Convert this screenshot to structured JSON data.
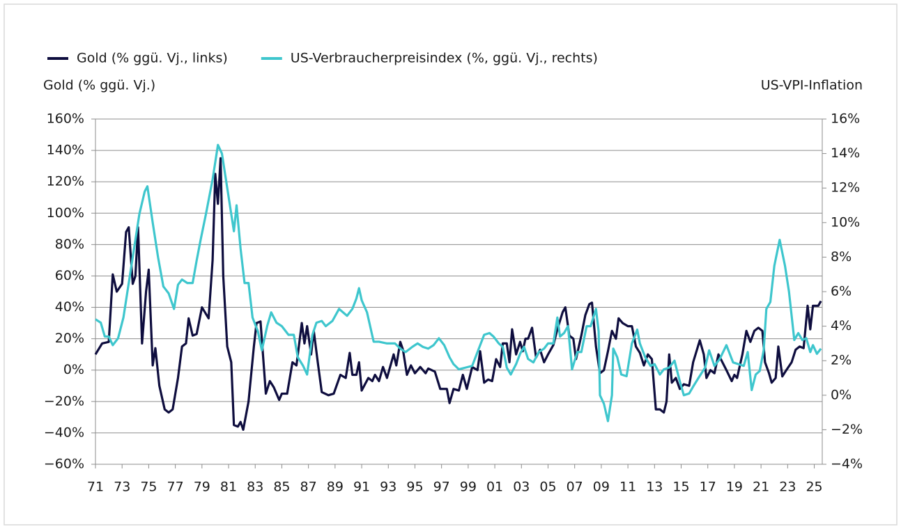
{
  "chart_data": {
    "type": "line",
    "ylabel": "Gold (% ggü. Vj.)",
    "y2label": "US-VPI-Inflation",
    "xlim": [
      1971,
      2025.6
    ],
    "xticks": [
      {
        "value": 1971,
        "label": "71"
      },
      {
        "value": 1973,
        "label": "73"
      },
      {
        "value": 1975,
        "label": "75"
      },
      {
        "value": 1977,
        "label": "77"
      },
      {
        "value": 1979,
        "label": "79"
      },
      {
        "value": 1981,
        "label": "81"
      },
      {
        "value": 1983,
        "label": "83"
      },
      {
        "value": 1985,
        "label": "85"
      },
      {
        "value": 1987,
        "label": "87"
      },
      {
        "value": 1989,
        "label": "89"
      },
      {
        "value": 1991,
        "label": "91"
      },
      {
        "value": 1993,
        "label": "93"
      },
      {
        "value": 1995,
        "label": "95"
      },
      {
        "value": 1997,
        "label": "97"
      },
      {
        "value": 1999,
        "label": "99"
      },
      {
        "value": 2001,
        "label": "01"
      },
      {
        "value": 2003,
        "label": "03"
      },
      {
        "value": 2005,
        "label": "05"
      },
      {
        "value": 2007,
        "label": "07"
      },
      {
        "value": 2009,
        "label": "09"
      },
      {
        "value": 2011,
        "label": "11"
      },
      {
        "value": 2013,
        "label": "13"
      },
      {
        "value": 2015,
        "label": "15"
      },
      {
        "value": 2017,
        "label": "17"
      },
      {
        "value": 2019,
        "label": "19"
      },
      {
        "value": 2021,
        "label": "21"
      },
      {
        "value": 2023,
        "label": "23"
      },
      {
        "value": 2025,
        "label": "25"
      }
    ],
    "ylim": [
      -60,
      160
    ],
    "yticks": [
      {
        "value": -60,
        "label": "−60%"
      },
      {
        "value": -40,
        "label": "−40%"
      },
      {
        "value": -20,
        "label": "−20%"
      },
      {
        "value": 0,
        "label": "0%"
      },
      {
        "value": 20,
        "label": "20%"
      },
      {
        "value": 40,
        "label": "40%"
      },
      {
        "value": 60,
        "label": "60%"
      },
      {
        "value": 80,
        "label": "80%"
      },
      {
        "value": 100,
        "label": "100%"
      },
      {
        "value": 120,
        "label": "120%"
      },
      {
        "value": 140,
        "label": "140%"
      },
      {
        "value": 160,
        "label": "160%"
      }
    ],
    "y2lim": [
      -4,
      16
    ],
    "y2ticks": [
      {
        "value": -4,
        "label": "−4%"
      },
      {
        "value": -2,
        "label": "−2%"
      },
      {
        "value": 0,
        "label": "0%"
      },
      {
        "value": 2,
        "label": "2%"
      },
      {
        "value": 4,
        "label": "4%"
      },
      {
        "value": 6,
        "label": "6%"
      },
      {
        "value": 8,
        "label": "8%"
      },
      {
        "value": 10,
        "label": "10%"
      },
      {
        "value": 12,
        "label": "12%"
      },
      {
        "value": 14,
        "label": "14%"
      },
      {
        "value": 16,
        "label": "16%"
      }
    ],
    "grid": true,
    "series": [
      {
        "name": "Gold (% ggü. Vj., links)",
        "color": "#0e0d3e",
        "axis": "y",
        "x": [
          1971.0,
          1971.5,
          1972.0,
          1972.3,
          1972.6,
          1973.0,
          1973.3,
          1973.5,
          1973.8,
          1974.0,
          1974.2,
          1974.5,
          1974.8,
          1975.0,
          1975.3,
          1975.5,
          1975.8,
          1976.2,
          1976.5,
          1976.8,
          1977.2,
          1977.5,
          1977.8,
          1978.0,
          1978.3,
          1978.6,
          1979.0,
          1979.5,
          1979.8,
          1980.0,
          1980.2,
          1980.4,
          1980.6,
          1980.9,
          1981.2,
          1981.4,
          1981.7,
          1981.9,
          1982.1,
          1982.5,
          1982.9,
          1983.1,
          1983.4,
          1983.8,
          1984.1,
          1984.4,
          1984.8,
          1985.0,
          1985.4,
          1985.8,
          1986.1,
          1986.5,
          1986.7,
          1986.9,
          1987.2,
          1987.4,
          1987.7,
          1988.0,
          1988.5,
          1988.9,
          1989.4,
          1989.8,
          1990.1,
          1990.3,
          1990.6,
          1990.8,
          1991.0,
          1991.5,
          1991.8,
          1992.0,
          1992.3,
          1992.6,
          1992.9,
          1993.4,
          1993.6,
          1993.9,
          1994.1,
          1994.4,
          1994.7,
          1995.0,
          1995.4,
          1995.8,
          1996.0,
          1996.5,
          1996.9,
          1997.4,
          1997.6,
          1997.9,
          1998.3,
          1998.6,
          1998.9,
          1999.3,
          1999.7,
          1999.9,
          2000.2,
          2000.5,
          2000.8,
          2001.1,
          2001.4,
          2001.6,
          2001.9,
          2002.1,
          2002.3,
          2002.6,
          2002.9,
          2003.1,
          2003.3,
          2003.5,
          2003.8,
          2004.1,
          2004.4,
          2004.7,
          2005.0,
          2005.4,
          2005.7,
          2006.1,
          2006.3,
          2006.6,
          2006.9,
          2007.1,
          2007.5,
          2007.8,
          2008.1,
          2008.3,
          2008.6,
          2008.9,
          2009.2,
          2009.5,
          2009.8,
          2010.1,
          2010.3,
          2010.6,
          2011.0,
          2011.3,
          2011.6,
          2011.9,
          2012.2,
          2012.5,
          2012.8,
          2013.1,
          2013.4,
          2013.7,
          2013.9,
          2014.1,
          2014.3,
          2014.6,
          2014.9,
          2015.2,
          2015.6,
          2015.9,
          2016.4,
          2016.7,
          2016.9,
          2017.2,
          2017.5,
          2017.8,
          2018.1,
          2018.4,
          2018.8,
          2019.0,
          2019.2,
          2019.6,
          2019.9,
          2020.2,
          2020.5,
          2020.8,
          2021.1,
          2021.3,
          2021.6,
          2021.8,
          2022.1,
          2022.3,
          2022.6,
          2022.9,
          2023.3,
          2023.6,
          2023.9,
          2024.2,
          2024.5,
          2024.7,
          2024.9,
          2025.3,
          2025.5
        ],
        "values": [
          10,
          17,
          18,
          61,
          50,
          55,
          88,
          91,
          55,
          60,
          91,
          17,
          50,
          64,
          3,
          14,
          -10,
          -25,
          -27,
          -25,
          -5,
          15,
          17,
          33,
          22,
          23,
          40,
          33,
          70,
          125,
          106,
          135,
          60,
          15,
          5,
          -35,
          -36,
          -33,
          -38,
          -20,
          15,
          30,
          31,
          -15,
          -7,
          -11,
          -19,
          -15,
          -15,
          5,
          3,
          30,
          17,
          28,
          10,
          25,
          5,
          -14,
          -16,
          -15,
          -3,
          -5,
          11,
          -3,
          -3,
          5,
          -13,
          -5,
          -7,
          -3,
          -7,
          2,
          -5,
          10,
          3,
          18,
          13,
          -3,
          3,
          -2,
          2,
          -2,
          1,
          -1,
          -12,
          -12,
          -21,
          -12,
          -13,
          -3,
          -12,
          2,
          0,
          12,
          -8,
          -6,
          -7,
          7,
          2,
          17,
          17,
          5,
          26,
          10,
          18,
          12,
          20,
          20,
          27,
          8,
          13,
          5,
          10,
          16,
          26,
          37,
          40,
          22,
          20,
          7,
          22,
          35,
          42,
          43,
          15,
          -2,
          0,
          12,
          25,
          20,
          33,
          30,
          28,
          28,
          15,
          11,
          3,
          10,
          7,
          -25,
          -25,
          -27,
          -20,
          10,
          -8,
          -5,
          -12,
          -9,
          -10,
          5,
          19,
          10,
          -5,
          0,
          -2,
          10,
          5,
          0,
          -7,
          -3,
          -5,
          10,
          25,
          18,
          25,
          27,
          25,
          5,
          -2,
          -8,
          -5,
          15,
          -4,
          0,
          5,
          13,
          15,
          14,
          41,
          26,
          41,
          41,
          44
        ]
      },
      {
        "name": "US-Verbraucherpreisindex (%, ggü. Vj., rechts)",
        "color": "#3ec6cd",
        "axis": "y2",
        "x": [
          1971.0,
          1971.4,
          1971.7,
          1972.0,
          1972.3,
          1972.7,
          1973.1,
          1973.6,
          1973.9,
          1974.3,
          1974.7,
          1974.9,
          1975.3,
          1975.7,
          1976.1,
          1976.5,
          1976.9,
          1977.2,
          1977.5,
          1977.9,
          1978.3,
          1978.6,
          1978.9,
          1979.3,
          1979.8,
          1980.2,
          1980.5,
          1980.8,
          1981.2,
          1981.4,
          1981.6,
          1981.9,
          1982.2,
          1982.5,
          1982.8,
          1983.2,
          1983.5,
          1983.9,
          1984.2,
          1984.6,
          1985.0,
          1985.5,
          1985.9,
          1986.2,
          1986.6,
          1986.9,
          1987.3,
          1987.6,
          1988.0,
          1988.3,
          1988.8,
          1989.3,
          1989.6,
          1989.9,
          1990.3,
          1990.6,
          1990.8,
          1991.0,
          1991.4,
          1991.9,
          1992.3,
          1992.9,
          1993.5,
          1993.9,
          1994.3,
          1994.8,
          1995.2,
          1995.6,
          1996.0,
          1996.4,
          1996.8,
          1997.2,
          1997.6,
          1997.9,
          1998.3,
          1998.8,
          1999.3,
          1999.7,
          2000.2,
          2000.6,
          2000.9,
          2001.3,
          2001.6,
          2001.9,
          2002.2,
          2002.6,
          2002.9,
          2003.2,
          2003.5,
          2003.9,
          2004.3,
          2004.7,
          2005.0,
          2005.4,
          2005.7,
          2005.9,
          2006.2,
          2006.5,
          2006.8,
          2007.2,
          2007.5,
          2007.9,
          2008.2,
          2008.6,
          2008.8,
          2008.9,
          2009.2,
          2009.5,
          2009.8,
          2009.9,
          2010.2,
          2010.5,
          2010.9,
          2011.3,
          2011.7,
          2011.9,
          2012.3,
          2012.7,
          2013.0,
          2013.4,
          2013.7,
          2014.1,
          2014.5,
          2014.9,
          2015.2,
          2015.6,
          2015.9,
          2016.3,
          2016.8,
          2017.1,
          2017.5,
          2017.9,
          2018.4,
          2018.9,
          2019.3,
          2019.7,
          2020.0,
          2020.3,
          2020.6,
          2020.9,
          2021.2,
          2021.4,
          2021.7,
          2022.0,
          2022.4,
          2022.8,
          2023.1,
          2023.5,
          2023.8,
          2024.1,
          2024.4,
          2024.7,
          2024.9,
          2025.2,
          2025.5
        ],
        "values": [
          4.4,
          4.2,
          3.4,
          3.4,
          2.9,
          3.3,
          4.5,
          7.0,
          8.5,
          10.5,
          11.8,
          12.1,
          10.0,
          8.0,
          6.3,
          5.9,
          5.0,
          6.4,
          6.7,
          6.5,
          6.5,
          7.8,
          9.0,
          10.5,
          12.5,
          14.5,
          14.0,
          12.5,
          10.5,
          9.5,
          11.0,
          8.5,
          6.5,
          6.5,
          4.5,
          3.7,
          2.6,
          4.0,
          4.8,
          4.2,
          4.0,
          3.5,
          3.5,
          2.2,
          1.7,
          1.2,
          3.5,
          4.2,
          4.3,
          4.0,
          4.3,
          5.0,
          4.8,
          4.6,
          5.0,
          5.6,
          6.2,
          5.5,
          4.8,
          3.1,
          3.1,
          3.0,
          3.0,
          2.7,
          2.5,
          2.8,
          3.0,
          2.8,
          2.7,
          2.9,
          3.3,
          2.9,
          2.2,
          1.8,
          1.5,
          1.6,
          1.7,
          2.5,
          3.5,
          3.6,
          3.4,
          3.0,
          2.8,
          1.6,
          1.2,
          1.8,
          2.4,
          2.8,
          2.1,
          1.9,
          2.5,
          2.7,
          3.0,
          3.0,
          4.5,
          3.4,
          3.6,
          4.0,
          1.5,
          2.5,
          2.5,
          4.0,
          4.0,
          5.0,
          3.7,
          0.0,
          -0.5,
          -1.5,
          0.0,
          2.7,
          2.2,
          1.2,
          1.1,
          3.0,
          3.8,
          3.0,
          2.2,
          1.7,
          1.8,
          1.2,
          1.5,
          1.6,
          2.0,
          0.8,
          0.0,
          0.1,
          0.5,
          1.0,
          1.6,
          2.6,
          1.7,
          2.1,
          2.9,
          1.9,
          1.8,
          1.7,
          2.5,
          0.3,
          1.2,
          1.4,
          2.6,
          5.0,
          5.4,
          7.5,
          9.0,
          7.5,
          6.0,
          3.2,
          3.6,
          3.2,
          3.3,
          2.5,
          2.9,
          2.4,
          2.7
        ]
      }
    ]
  }
}
